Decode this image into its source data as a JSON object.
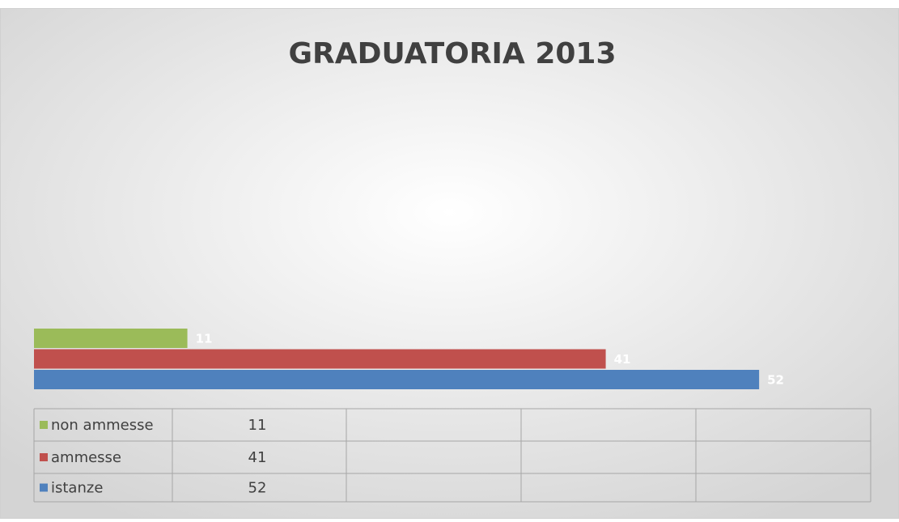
{
  "chart_data": {
    "type": "bar",
    "orientation": "horizontal",
    "title": "GRADUATORIA 2013",
    "categories": [
      null
    ],
    "series": [
      {
        "name": "non ammesse",
        "color": "#9bbb59",
        "values": [
          11
        ]
      },
      {
        "name": "ammesse",
        "color": "#c0504d",
        "values": [
          41
        ]
      },
      {
        "name": "istanze",
        "color": "#4f81bd",
        "values": [
          52
        ]
      }
    ],
    "xlim": [
      0,
      60
    ],
    "data_labels": true,
    "data_table": true
  }
}
